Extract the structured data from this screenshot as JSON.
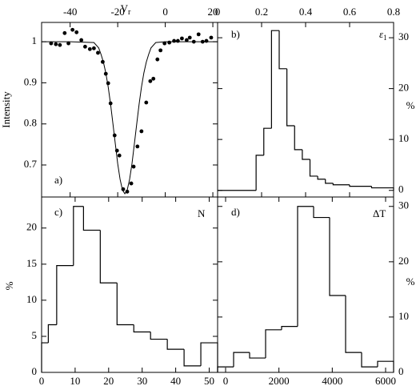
{
  "chart_data": [
    {
      "type": "scatter",
      "label": "a)",
      "xlabel": "V",
      "xlabel_sub": "r",
      "ylabel": "Intensity",
      "xaxis": "top",
      "yaxis": "left",
      "color": "#000000",
      "xlim": [
        -52,
        22
      ],
      "ylim": [
        0.622,
        1.047
      ],
      "xticks": [
        -40,
        -20,
        0,
        20
      ],
      "yticks": [
        0.7,
        0.8,
        0.9,
        1
      ],
      "points": {
        "x": [
          -48,
          -46,
          -44.3,
          -42.3,
          -40.7,
          -39,
          -37.3,
          -35.3,
          -33.7,
          -31.7,
          -30,
          -28.3,
          -26.3,
          -25,
          -24,
          -23,
          -21.3,
          -20.3,
          -19.3,
          -17.7,
          -16,
          -14.3,
          -13.3,
          -11.7,
          -10,
          -8,
          -6.3,
          -5,
          -3.3,
          -2,
          -0.3,
          1.7,
          3.7,
          5.3,
          7,
          9,
          10.3,
          12,
          14,
          15.7,
          17.3,
          19.3
        ],
        "values": [
          0.996,
          0.994,
          0.992,
          1.021,
          0.996,
          1.029,
          1.023,
          1.004,
          0.988,
          0.982,
          0.984,
          0.973,
          0.951,
          0.922,
          0.899,
          0.85,
          0.772,
          0.735,
          0.723,
          0.641,
          0.635,
          0.655,
          0.696,
          0.745,
          0.782,
          0.852,
          0.904,
          0.91,
          0.957,
          0.979,
          0.996,
          0.998,
          1.002,
          1.002,
          1.008,
          1.004,
          1.01,
          1.0,
          1.018,
          1.0,
          1.002,
          1.01
        ]
      },
      "curve": {
        "x": [
          -52,
          -40,
          -30,
          -28,
          -27,
          -26,
          -25,
          -24,
          -23,
          -22,
          -21,
          -20,
          -19,
          -18,
          -17,
          -16,
          -15,
          -14,
          -13,
          -12,
          -11,
          -10,
          -9,
          -8,
          -7,
          -6,
          -4,
          0,
          10,
          22
        ],
        "values": [
          1,
          1,
          0.998,
          0.985,
          0.969,
          0.95,
          0.924,
          0.89,
          0.848,
          0.8,
          0.751,
          0.703,
          0.665,
          0.639,
          0.63,
          0.639,
          0.665,
          0.703,
          0.751,
          0.8,
          0.848,
          0.89,
          0.924,
          0.95,
          0.969,
          0.985,
          0.998,
          1,
          1,
          1
        ]
      }
    },
    {
      "type": "histogram",
      "label": "b)",
      "symbol": "ε",
      "symbol_sub": "1",
      "ylabel": "%",
      "xaxis": "top",
      "yaxis": "right",
      "color": "#000000",
      "xlim": [
        0,
        0.8
      ],
      "ylim": [
        -1.3,
        33
      ],
      "xticks": [
        0,
        0.2,
        0.4,
        0.6,
        0.8
      ],
      "yticks": [
        0,
        10,
        20,
        30
      ],
      "bins": [
        0,
        0.175,
        0.21,
        0.245,
        0.28,
        0.315,
        0.35,
        0.385,
        0.42,
        0.455,
        0.49,
        0.525,
        0.6,
        0.7,
        0.8
      ],
      "values": [
        0,
        6.9,
        12.2,
        31.4,
        23.9,
        12.7,
        8,
        6.1,
        2.8,
        2.2,
        1.4,
        1.1,
        0.8,
        0.5
      ]
    },
    {
      "type": "histogram",
      "label": "c)",
      "symbol": "N",
      "ylabel": "%",
      "xaxis": "bottom",
      "yaxis": "left",
      "color": "#000000",
      "xlim": [
        0,
        52.5
      ],
      "ylim": [
        0,
        24.3
      ],
      "xticks": [
        0,
        10,
        20,
        30,
        40,
        50
      ],
      "yticks": [
        0,
        5,
        10,
        15,
        20
      ],
      "bins": [
        0,
        2,
        4.5,
        9.5,
        12.5,
        17.5,
        22.5,
        27.5,
        32.5,
        37.5,
        42.5,
        47.5,
        52.5
      ],
      "values": [
        4.1,
        6.6,
        14.8,
        23,
        19.7,
        12.4,
        6.6,
        5.6,
        4.6,
        3.2,
        0.9,
        4.1
      ]
    },
    {
      "type": "histogram",
      "label": "d)",
      "symbol": "ΔT",
      "ylabel": "%",
      "xaxis": "bottom",
      "yaxis": "right",
      "color": "#000000",
      "xlim": [
        -300,
        6300
      ],
      "ylim": [
        0,
        31.7
      ],
      "xticks": [
        0,
        2000,
        4000,
        6000
      ],
      "yticks": [
        0,
        10,
        20,
        30
      ],
      "bins": [
        -300,
        300,
        900,
        1500,
        2100,
        2700,
        3300,
        3900,
        4500,
        5100,
        5700,
        6300
      ],
      "values": [
        1.0,
        3.6,
        2.6,
        7.7,
        8.3,
        30,
        28,
        13.9,
        3.6,
        1.0,
        2.0
      ]
    }
  ]
}
